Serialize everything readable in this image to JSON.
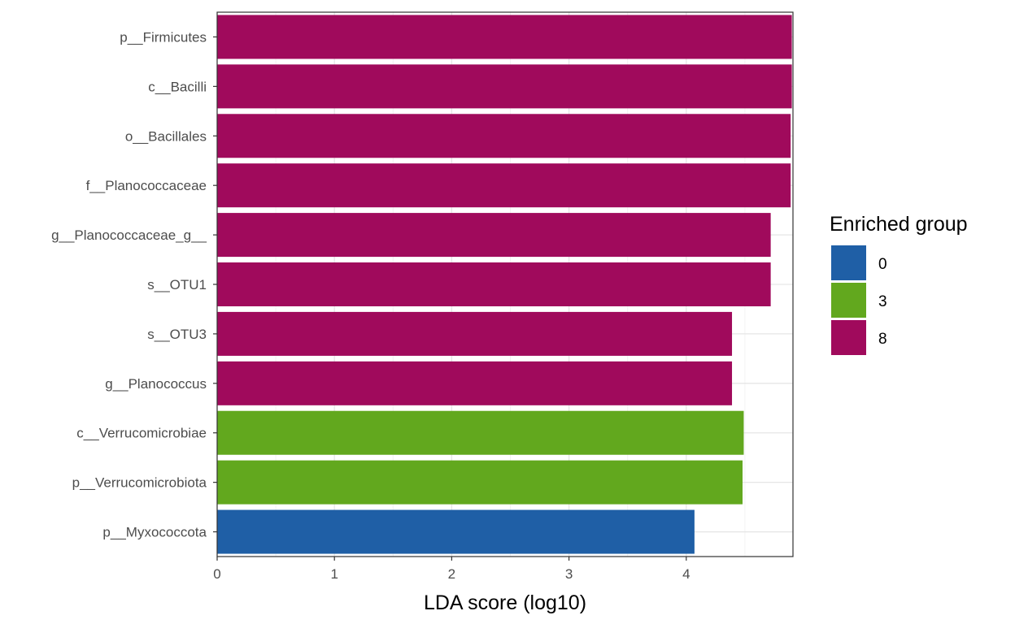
{
  "chart_data": {
    "type": "bar",
    "orientation": "horizontal",
    "title": "",
    "xlabel": "LDA score (log10)",
    "ylabel": "",
    "xlim": [
      0,
      4.9
    ],
    "xticks": [
      "0",
      "1",
      "2",
      "3",
      "4"
    ],
    "grid": true,
    "legend": {
      "title": "Enriched group",
      "placement": "right",
      "entries": [
        {
          "label": "0",
          "color": "#1f5fa6"
        },
        {
          "label": "3",
          "color": "#62a81e"
        },
        {
          "label": "8",
          "color": "#a00a5c"
        }
      ]
    },
    "categories": [
      "p__Firmicutes",
      "c__Bacilli",
      "o__Bacillales",
      "f__Planococcaceae",
      "g__Planococcaceae_g__",
      "s__OTU1",
      "s__OTU3",
      "g__Planococcus",
      "c__Verrucomicrobiae",
      "p__Verrucomicrobiota",
      "p__Myxococcota"
    ],
    "values": [
      4.9,
      4.9,
      4.89,
      4.89,
      4.72,
      4.72,
      4.39,
      4.39,
      4.49,
      4.48,
      4.07
    ],
    "groups": [
      "8",
      "8",
      "8",
      "8",
      "8",
      "8",
      "8",
      "8",
      "3",
      "3",
      "0"
    ]
  }
}
